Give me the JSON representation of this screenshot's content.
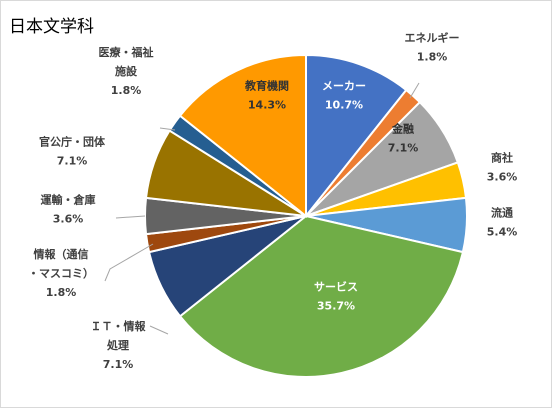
{
  "chart_data": {
    "type": "pie",
    "title": "日本文学科",
    "slices": [
      {
        "name": "メーカー",
        "value": 10.7,
        "label": "10.7%",
        "color": "#4472C4"
      },
      {
        "name": "エネルギー",
        "value": 1.8,
        "label": "1.8%",
        "color": "#ED7D31"
      },
      {
        "name": "金融",
        "value": 7.1,
        "label": "7.1%",
        "color": "#A5A5A5"
      },
      {
        "name": "商社",
        "value": 3.6,
        "label": "3.6%",
        "color": "#FFC000"
      },
      {
        "name": "流通",
        "value": 5.4,
        "label": "5.4%",
        "color": "#5B9BD5"
      },
      {
        "name": "サービス",
        "value": 35.7,
        "label": "35.7%",
        "color": "#70AD47"
      },
      {
        "name": "ＩＴ・情報処理",
        "value": 7.1,
        "label": "7.1%",
        "color": "#264478"
      },
      {
        "name": "情報（通信・マスコミ）",
        "value": 1.8,
        "label": "1.8%",
        "color": "#9E480E"
      },
      {
        "name": "運輸・倉庫",
        "value": 3.6,
        "label": "3.6%",
        "color": "#636363"
      },
      {
        "name": "官公庁・団体",
        "value": 7.1,
        "label": "7.1%",
        "color": "#997300"
      },
      {
        "name": "医療・福祉施設",
        "value": 1.8,
        "label": "1.8%",
        "color": "#255E91"
      },
      {
        "name": "教育機関",
        "value": 14.3,
        "label": "14.3%",
        "color": "#FF9900"
      }
    ]
  }
}
